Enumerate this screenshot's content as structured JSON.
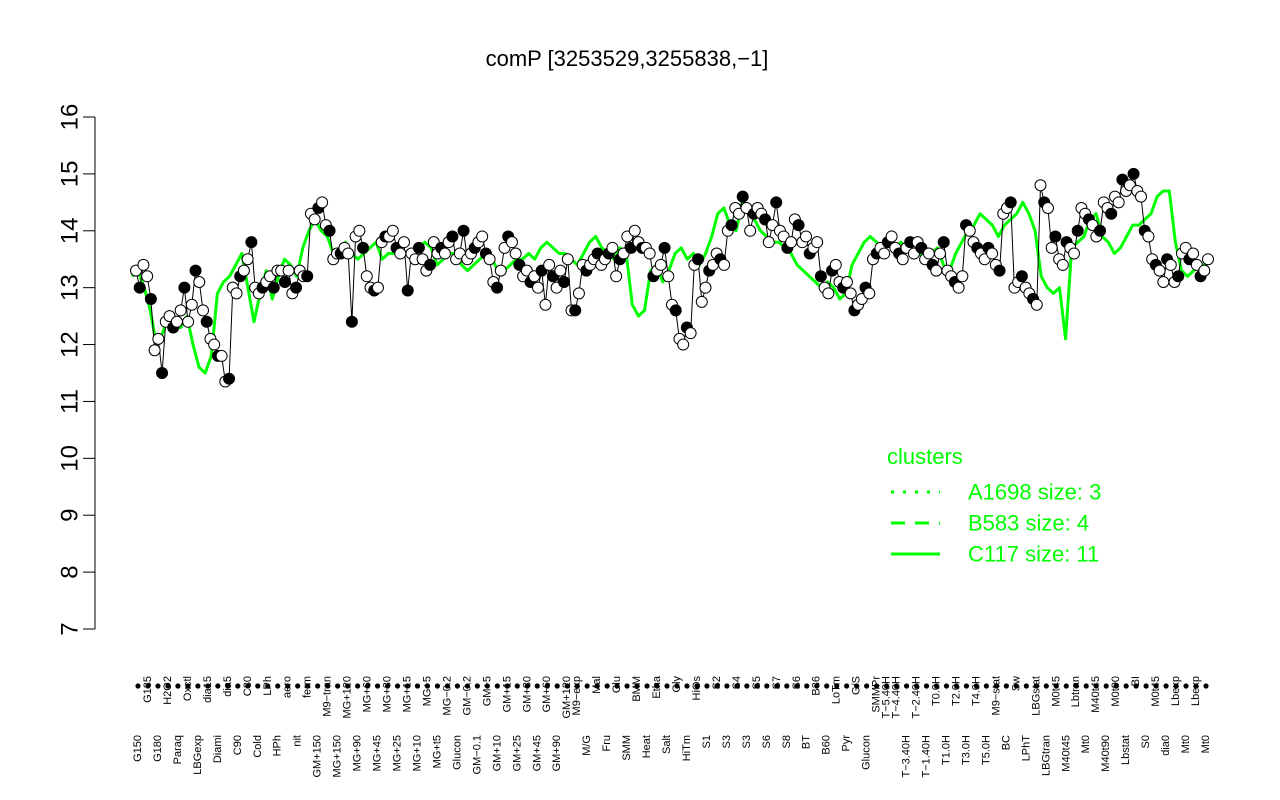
{
  "chart_data": {
    "type": "line",
    "title": "comP [3253529,3255838,−1]",
    "xlabel": "",
    "ylabel": "",
    "ylim": [
      7,
      16
    ],
    "yticks": [
      7,
      8,
      9,
      10,
      11,
      12,
      13,
      14,
      15,
      16
    ],
    "grid": false,
    "legend_position": "right",
    "x_categories_shown": [
      "G150",
      "G135",
      "G180",
      "H2O2",
      "Paraq",
      "Oxctl",
      "LBGexp",
      "dia15",
      "Diami",
      "dia5",
      "C90",
      "C30",
      "Cold",
      "LPh",
      "HPh",
      "aero",
      "nit",
      "ferm",
      "GM+150",
      "M9−tran",
      "MG+150",
      "MG+120",
      "MG+90",
      "MG+60",
      "MG+45",
      "MG+30",
      "MG+25",
      "MG+15",
      "MG+10",
      "MG+5",
      "MG+t5",
      "MG−0.2",
      "Glucon",
      "GM−0.2",
      "GM−0.1",
      "GM+5",
      "GM+10",
      "GM+15",
      "GM+25",
      "GM+30",
      "GM+45",
      "GM+60",
      "GM+90",
      "GM+120",
      "M9−exp",
      "M/G",
      "Mal",
      "Fru",
      "Glu",
      "SMM",
      "BMM",
      "Heat",
      "Etha",
      "Salt",
      "Gly",
      "HiTm",
      "HiOs",
      "S1",
      "S2",
      "S3",
      "S4",
      "S5",
      "S6",
      "S7",
      "S8",
      "BT",
      "B36",
      "B60",
      "LoTm",
      "Pyr",
      "G/S",
      "SMMPr",
      "Glucon",
      "T−5.40H",
      "T−4.40H",
      "T−3.40H",
      "T−2.40H",
      "T−1.40H",
      "T−0.40H",
      "T0.0H",
      "T1.0H",
      "T2.0H",
      "T3.0H",
      "T4.0H",
      "T5.0H",
      "M9−stat",
      "BC",
      "Sw",
      "LPhT",
      "LBGstat",
      "LBGtran",
      "M0t45",
      "M40t45",
      "Lbtran",
      "Mt0",
      "M40t90",
      "M0t90",
      "Lbstat",
      "BI",
      "S0",
      "dia0",
      "Lbexp"
    ],
    "x_labels_printed": [
      {
        "label": "G150",
        "row": "lower"
      },
      {
        "label": "G135",
        "row": "upper"
      },
      {
        "label": "G180",
        "row": "lower"
      },
      {
        "label": "H2O2",
        "row": "upper"
      },
      {
        "label": "Paraq",
        "row": "lower"
      },
      {
        "label": "Oxctl",
        "row": "upper"
      },
      {
        "label": "LBGexp",
        "row": "lower"
      },
      {
        "label": "dia15",
        "row": "upper"
      },
      {
        "label": "Diami",
        "row": "lower"
      },
      {
        "label": "dia5",
        "row": "upper"
      },
      {
        "label": "C90",
        "row": "lower"
      },
      {
        "label": "C30",
        "row": "upper"
      },
      {
        "label": "Cold",
        "row": "lower"
      },
      {
        "label": "LPh",
        "row": "upper"
      },
      {
        "label": "HPh",
        "row": "lower"
      },
      {
        "label": "aero",
        "row": "upper"
      },
      {
        "label": "nit",
        "row": "lower"
      },
      {
        "label": "ferm",
        "row": "upper"
      },
      {
        "label": "GM+150",
        "row": "lower"
      },
      {
        "label": "M9−tran",
        "row": "upper"
      },
      {
        "label": "MG+150",
        "row": "lower"
      },
      {
        "label": "MG+120",
        "row": "upper"
      },
      {
        "label": "MG+90",
        "row": "lower"
      },
      {
        "label": "MG+60",
        "row": "upper"
      },
      {
        "label": "MG+45",
        "row": "lower"
      },
      {
        "label": "MG+30",
        "row": "upper"
      },
      {
        "label": "MG+25",
        "row": "lower"
      },
      {
        "label": "MG+15",
        "row": "upper"
      },
      {
        "label": "MG+10",
        "row": "lower"
      },
      {
        "label": "MG+5",
        "row": "upper"
      },
      {
        "label": "MG+t5",
        "row": "lower"
      },
      {
        "label": "MG−0.2",
        "row": "upper"
      },
      {
        "label": "Glucon",
        "row": "lower"
      },
      {
        "label": "GM−0.2",
        "row": "upper"
      },
      {
        "label": "GM−0.1",
        "row": "lower"
      },
      {
        "label": "GM+5",
        "row": "upper"
      },
      {
        "label": "GM+10",
        "row": "lower"
      },
      {
        "label": "GM+15",
        "row": "upper"
      },
      {
        "label": "GM+25",
        "row": "lower"
      },
      {
        "label": "GM+30",
        "row": "upper"
      },
      {
        "label": "GM+45",
        "row": "lower"
      },
      {
        "label": "GM+60",
        "row": "upper"
      },
      {
        "label": "GM+90",
        "row": "lower"
      },
      {
        "label": "GM+120",
        "row": "upper"
      },
      {
        "label": "M9−exp",
        "row": "upper"
      },
      {
        "label": "M/G",
        "row": "lower"
      },
      {
        "label": "Mal",
        "row": "upper"
      },
      {
        "label": "Fru",
        "row": "lower"
      },
      {
        "label": "Glu",
        "row": "upper"
      },
      {
        "label": "SMM",
        "row": "lower"
      },
      {
        "label": "BMM",
        "row": "upper"
      },
      {
        "label": "Heat",
        "row": "lower"
      },
      {
        "label": "Etha",
        "row": "upper"
      },
      {
        "label": "Salt",
        "row": "lower"
      },
      {
        "label": "Gly",
        "row": "upper"
      },
      {
        "label": "HiTm",
        "row": "lower"
      },
      {
        "label": "HiOs",
        "row": "upper"
      },
      {
        "label": "S1",
        "row": "lower"
      },
      {
        "label": "S2",
        "row": "upper"
      },
      {
        "label": "S3",
        "row": "lower"
      },
      {
        "label": "S4",
        "row": "upper"
      },
      {
        "label": "S3",
        "row": "lower"
      },
      {
        "label": "S5",
        "row": "upper"
      },
      {
        "label": "S6",
        "row": "lower"
      },
      {
        "label": "S7",
        "row": "upper"
      },
      {
        "label": "S8",
        "row": "lower"
      },
      {
        "label": "S6",
        "row": "upper"
      },
      {
        "label": "BT",
        "row": "lower"
      },
      {
        "label": "B36",
        "row": "upper"
      },
      {
        "label": "B60",
        "row": "lower"
      },
      {
        "label": "LoTm",
        "row": "upper"
      },
      {
        "label": "Pyr",
        "row": "lower"
      },
      {
        "label": "G/S",
        "row": "upper"
      },
      {
        "label": "Glucon",
        "row": "lower"
      },
      {
        "label": "SMMPr",
        "row": "upper"
      },
      {
        "label": "T−5.40H",
        "row": "upper"
      },
      {
        "label": "T−4.40H",
        "row": "upper"
      },
      {
        "label": "T−3.40H",
        "row": "lower"
      },
      {
        "label": "T−2.40H",
        "row": "upper"
      },
      {
        "label": "T−1.40H",
        "row": "lower"
      },
      {
        "label": "T0.0H",
        "row": "upper"
      },
      {
        "label": "T1.0H",
        "row": "lower"
      },
      {
        "label": "T2.0H",
        "row": "upper"
      },
      {
        "label": "T3.0H",
        "row": "lower"
      },
      {
        "label": "T4.0H",
        "row": "upper"
      },
      {
        "label": "T5.0H",
        "row": "lower"
      },
      {
        "label": "M9−stat",
        "row": "upper"
      },
      {
        "label": "BC",
        "row": "lower"
      },
      {
        "label": "Sw",
        "row": "upper"
      },
      {
        "label": "LPhT",
        "row": "lower"
      },
      {
        "label": "LBGstat",
        "row": "upper"
      },
      {
        "label": "LBGtran",
        "row": "lower"
      },
      {
        "label": "M0t45",
        "row": "upper"
      },
      {
        "label": "M40t45",
        "row": "lower"
      },
      {
        "label": "Lbtran",
        "row": "upper"
      },
      {
        "label": "Mt0",
        "row": "lower"
      },
      {
        "label": "M40t45",
        "row": "upper"
      },
      {
        "label": "M40t90",
        "row": "lower"
      },
      {
        "label": "M0t90",
        "row": "upper"
      },
      {
        "label": "Lbstat",
        "row": "lower"
      },
      {
        "label": "BI",
        "row": "upper"
      },
      {
        "label": "S0",
        "row": "lower"
      },
      {
        "label": "M0t45",
        "row": "upper"
      },
      {
        "label": "dia0",
        "row": "lower"
      },
      {
        "label": "Lbexp",
        "row": "upper"
      },
      {
        "label": "Mt0",
        "row": "lower"
      },
      {
        "label": "Lbexp",
        "row": "upper"
      },
      {
        "label": "Mt0",
        "row": "lower"
      }
    ],
    "series": [
      {
        "name": "C117 size: 11",
        "style": "solid",
        "color": "#00ff00",
        "values": [
          13.2,
          13.3,
          13.0,
          12.6,
          12.0,
          12.2,
          12.5,
          12.3,
          12.3,
          12.5,
          12.0,
          11.6,
          11.5,
          11.8,
          12.9,
          13.1,
          13.2,
          13.4,
          13.6,
          13.0,
          12.4,
          12.9,
          13.3,
          12.8,
          13.2,
          13.5,
          13.4,
          13.2,
          13.7,
          14.0,
          14.2,
          14.0,
          13.9,
          13.6,
          13.7,
          13.8,
          13.6,
          13.5,
          13.6,
          13.7,
          13.8,
          13.5,
          13.6,
          13.6,
          13.7,
          13.6,
          13.5,
          13.7,
          13.8,
          13.7,
          13.4,
          13.5,
          13.6,
          13.6,
          13.4,
          13.3,
          13.4,
          13.5,
          13.6,
          13.5,
          13.3,
          13.3,
          13.4,
          13.5,
          13.5,
          13.6,
          13.5,
          13.7,
          13.8,
          13.7,
          13.6,
          13.6,
          13.5,
          13.4,
          13.6,
          13.8,
          13.9,
          13.7,
          13.6,
          13.5,
          13.7,
          13.6,
          12.7,
          12.5,
          12.6,
          13.3,
          13.4,
          13.1,
          13.3,
          13.6,
          13.7,
          13.5,
          13.6,
          13.4,
          13.6,
          13.9,
          14.3,
          14.4,
          14.1,
          14.0,
          14.5,
          14.3,
          14.2,
          14.0,
          13.9,
          13.8,
          13.8,
          13.7,
          13.6,
          13.4,
          13.3,
          13.2,
          13.1,
          13.0,
          13.1,
          13.0,
          12.8,
          12.9,
          13.4,
          13.6,
          13.8,
          13.9,
          13.8,
          13.7,
          13.8,
          13.7,
          13.8,
          13.7,
          13.6,
          13.6,
          13.5,
          13.6,
          13.7,
          13.4,
          13.3,
          13.6,
          13.8,
          14.0,
          14.1,
          14.3,
          14.2,
          14.1,
          13.9,
          14.1,
          14.2,
          14.3,
          14.5,
          14.3,
          14.0,
          13.2,
          13.0,
          12.9,
          13.0,
          12.1,
          13.7,
          13.8,
          13.9,
          14.2,
          14.3,
          13.9,
          13.8,
          13.6,
          13.7,
          13.9,
          14.1,
          14.1,
          14.2,
          14.3,
          14.6,
          14.7,
          14.7,
          13.8,
          13.3,
          13.2,
          13.3,
          13.4,
          13.4,
          13.5
        ]
      },
      {
        "name": "B583 size: 4",
        "style": "dashed",
        "color": "#00ff00",
        "values": []
      },
      {
        "name": "A1698 size: 3",
        "style": "dotted",
        "color": "#00ff00",
        "values": []
      }
    ],
    "points": [
      13.3,
      13.0,
      13.4,
      13.2,
      12.8,
      11.9,
      12.1,
      11.5,
      12.4,
      12.5,
      12.3,
      12.4,
      12.6,
      13.0,
      12.4,
      12.7,
      13.3,
      13.1,
      12.6,
      12.4,
      12.1,
      12.0,
      11.8,
      11.8,
      11.35,
      11.4,
      13.0,
      12.9,
      13.2,
      13.3,
      13.5,
      13.8,
      13.0,
      12.9,
      13.0,
      13.1,
      13.2,
      13.0,
      13.3,
      13.3,
      13.1,
      13.3,
      12.9,
      13.0,
      13.3,
      13.2,
      13.2,
      14.3,
      14.2,
      14.4,
      14.5,
      14.1,
      14.0,
      13.5,
      13.6,
      13.6,
      13.7,
      13.6,
      12.4,
      13.9,
      14.0,
      13.7,
      13.2,
      13.0,
      12.95,
      13.0,
      13.8,
      13.9,
      13.9,
      14.0,
      13.7,
      13.6,
      13.8,
      12.95,
      13.6,
      13.5,
      13.7,
      13.5,
      13.3,
      13.4,
      13.8,
      13.6,
      13.7,
      13.6,
      13.8,
      13.9,
      13.5,
      13.6,
      14.0,
      13.5,
      13.6,
      13.7,
      13.8,
      13.9,
      13.6,
      13.5,
      13.1,
      13.0,
      13.3,
      13.7,
      13.9,
      13.8,
      13.6,
      13.4,
      13.2,
      13.3,
      13.1,
      13.2,
      13.0,
      13.3,
      12.7,
      13.4,
      13.2,
      13.0,
      13.3,
      13.1,
      13.5,
      12.6,
      12.6,
      12.9,
      13.4,
      13.3,
      13.4,
      13.5,
      13.6,
      13.4,
      13.5,
      13.6,
      13.7,
      13.2,
      13.5,
      13.6,
      13.9,
      13.7,
      14.0,
      13.8,
      13.7,
      13.7,
      13.6,
      13.2,
      13.3,
      13.4,
      13.7,
      13.2,
      12.7,
      12.6,
      12.1,
      12.0,
      12.3,
      12.2,
      13.4,
      13.5,
      12.75,
      13.0,
      13.3,
      13.4,
      13.6,
      13.5,
      13.4,
      14.0,
      14.1,
      14.4,
      14.3,
      14.6,
      14.4,
      14.0,
      14.3,
      14.4,
      14.3,
      14.2,
      13.8,
      14.1,
      14.5,
      14.0,
      13.9,
      13.7,
      13.8,
      14.2,
      14.1,
      13.8,
      13.9,
      13.6,
      13.7,
      13.8,
      13.2,
      13.0,
      12.9,
      13.3,
      13.4,
      13.1,
      13.0,
      13.1,
      12.9,
      12.6,
      12.7,
      12.8,
      13.0,
      12.9,
      13.5,
      13.6,
      13.7,
      13.6,
      13.8,
      13.9,
      13.7,
      13.6,
      13.5,
      13.7,
      13.8,
      13.6,
      13.8,
      13.7,
      13.5,
      13.6,
      13.4,
      13.3,
      13.6,
      13.8,
      13.3,
      13.2,
      13.1,
      13.0,
      13.2,
      14.1,
      14.0,
      13.8,
      13.7,
      13.6,
      13.5,
      13.7,
      13.6,
      13.4,
      13.3,
      14.3,
      14.4,
      14.5,
      13.0,
      13.1,
      13.2,
      13.0,
      12.9,
      12.8,
      12.7,
      14.8,
      14.5,
      14.4,
      13.7,
      13.9,
      13.5,
      13.4,
      13.8,
      13.7,
      13.6,
      14.0,
      14.4,
      14.3,
      14.2,
      14.1,
      13.9,
      14.0,
      14.5,
      14.4,
      14.3,
      14.6,
      14.5,
      14.9,
      14.7,
      14.8,
      15.0,
      14.7,
      14.6,
      14.0,
      13.9,
      13.5,
      13.4,
      13.3,
      13.1,
      13.5,
      13.4,
      13.1,
      13.2,
      13.6,
      13.7,
      13.5,
      13.6,
      13.4,
      13.2,
      13.3,
      13.5
    ]
  },
  "legend": {
    "title": "clusters",
    "entries": [
      {
        "label": "A1698 size: 3",
        "style": "dotted"
      },
      {
        "label": "B583 size: 4",
        "style": "dashed"
      },
      {
        "label": "C117 size: 11",
        "style": "solid"
      }
    ]
  },
  "colors": {
    "series": "#00ff00",
    "axis": "#000000",
    "point_fill_open": "#ffffff",
    "point_fill_closed": "#000000"
  }
}
